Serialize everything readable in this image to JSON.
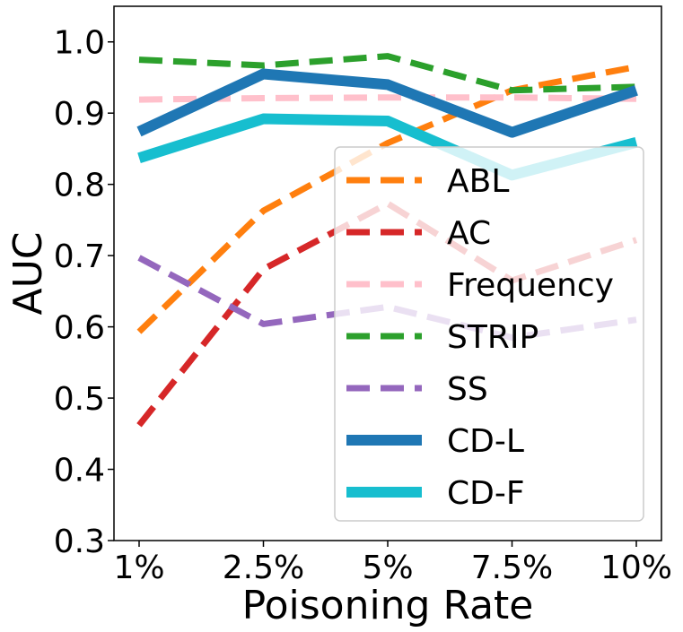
{
  "chart_data": {
    "type": "line",
    "xlabel": "Poisoning Rate",
    "ylabel": "AUC",
    "categories": [
      "1%",
      "2.5%",
      "5%",
      "7.5%",
      "10%"
    ],
    "ylim": [
      0.3,
      1.05
    ],
    "yticks": [
      0.3,
      0.4,
      0.5,
      0.6,
      0.7,
      0.8,
      0.9,
      1.0
    ],
    "ytick_labels": [
      "0.3",
      "0.4",
      "0.5",
      "0.6",
      "0.7",
      "0.8",
      "0.9",
      "1.0"
    ],
    "grid": false,
    "legend_position": "bottom-right",
    "series": [
      {
        "name": "ABL",
        "values": [
          0.593,
          0.763,
          0.858,
          0.932,
          0.965
        ],
        "color": "#ff7f0e",
        "style": "dashed"
      },
      {
        "name": "AC",
        "values": [
          0.462,
          0.681,
          0.773,
          0.665,
          0.722
        ],
        "color": "#d62728",
        "style": "dashed"
      },
      {
        "name": "Frequency",
        "values": [
          0.919,
          0.921,
          0.922,
          0.922,
          0.92
        ],
        "color": "#ffc0cb",
        "style": "dashed"
      },
      {
        "name": "STRIP",
        "values": [
          0.975,
          0.967,
          0.98,
          0.932,
          0.937
        ],
        "color": "#2ca02c",
        "style": "dashed"
      },
      {
        "name": "SS",
        "values": [
          0.697,
          0.604,
          0.628,
          0.585,
          0.61
        ],
        "color": "#9467bd",
        "style": "dashed"
      },
      {
        "name": "CD-L",
        "values": [
          0.874,
          0.955,
          0.94,
          0.873,
          0.932
        ],
        "color": "#1f77b4",
        "style": "solid"
      },
      {
        "name": "CD-F",
        "values": [
          0.837,
          0.892,
          0.889,
          0.813,
          0.859
        ],
        "color": "#17becf",
        "style": "solid"
      }
    ]
  }
}
